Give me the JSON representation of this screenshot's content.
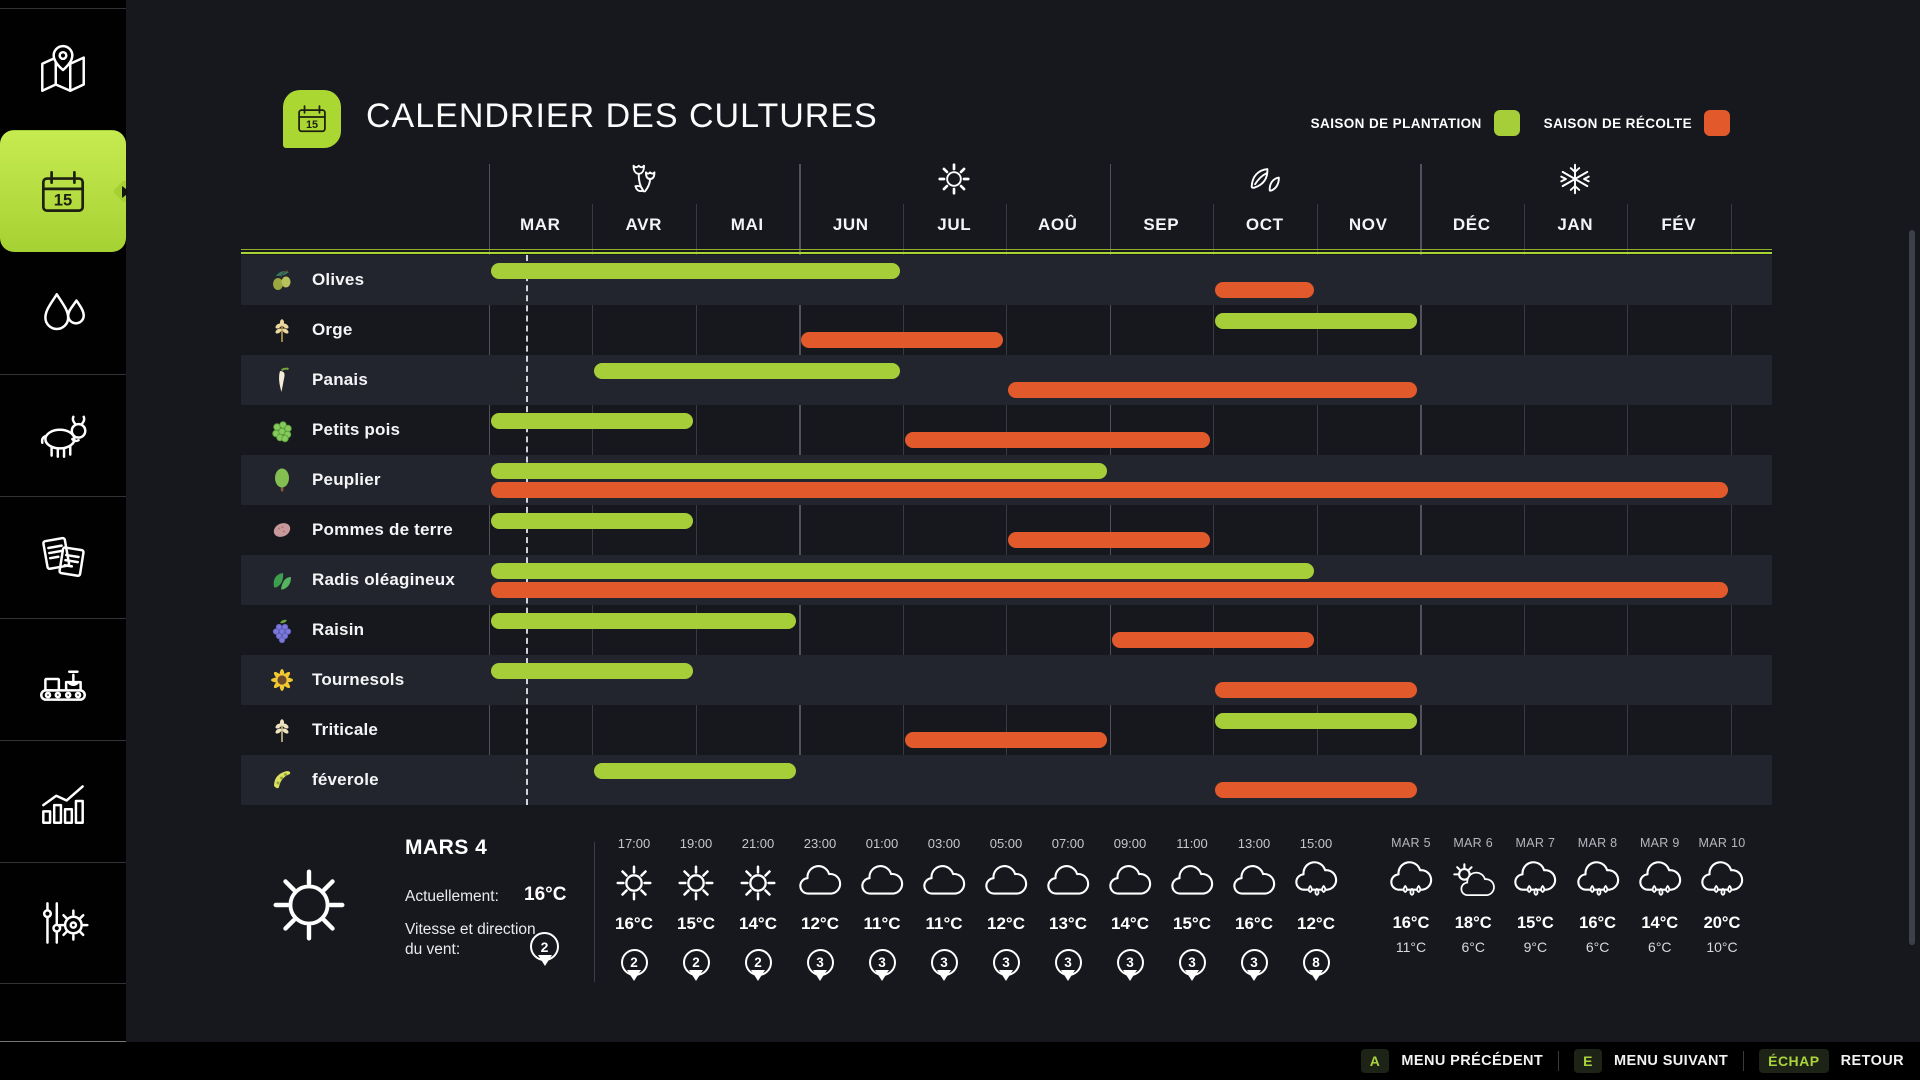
{
  "app": {
    "title": "CALENDRIER DES CULTURES"
  },
  "legend": {
    "planting_label": "SAISON DE PLANTATION",
    "harvest_label": "SAISON DE RÉCOLTE",
    "planting_color": "#a6ce39",
    "harvest_color": "#e2592b"
  },
  "sidebar": {
    "items": [
      {
        "id": "map",
        "icon": "map-icon",
        "active": false
      },
      {
        "id": "calendar",
        "icon": "calendar-icon",
        "active": true
      },
      {
        "id": "water",
        "icon": "water-drops-icon",
        "active": false
      },
      {
        "id": "animals",
        "icon": "cow-icon",
        "active": false
      },
      {
        "id": "contracts",
        "icon": "contracts-icon",
        "active": false
      },
      {
        "id": "production",
        "icon": "production-icon",
        "active": false
      },
      {
        "id": "statistics",
        "icon": "statistics-icon",
        "active": false
      },
      {
        "id": "settings",
        "icon": "settings-sliders-icon",
        "active": false
      }
    ]
  },
  "chart_data": {
    "type": "gantt-calendar",
    "months": [
      "MAR",
      "AVR",
      "MAI",
      "JUN",
      "JUL",
      "AOÛ",
      "SEP",
      "OCT",
      "NOV",
      "DÉC",
      "JAN",
      "FÉV"
    ],
    "seasons": [
      {
        "icon": "spring-flowers-icon",
        "center_month": 1.5
      },
      {
        "icon": "summer-sun-icon",
        "center_month": 4.5
      },
      {
        "icon": "autumn-leaves-icon",
        "center_month": 7.5
      },
      {
        "icon": "winter-snowflake-icon",
        "center_month": 10.5
      }
    ],
    "planting_color": "#a6ce39",
    "harvest_color": "#e2592b",
    "current_day_marker": {
      "label": "MARS 4",
      "month_index": 0,
      "fraction": 0.36
    },
    "rows": [
      {
        "crop": "Olives",
        "icon": "olives-icon",
        "planting": [
          [
            0,
            4
          ]
        ],
        "harvest": [
          [
            7,
            8
          ]
        ]
      },
      {
        "crop": "Orge",
        "icon": "barley-icon",
        "planting": [
          [
            7,
            9
          ]
        ],
        "harvest": [
          [
            3,
            5
          ]
        ]
      },
      {
        "crop": "Panais",
        "icon": "parsnip-icon",
        "planting": [
          [
            1,
            4
          ]
        ],
        "harvest": [
          [
            5,
            9
          ]
        ]
      },
      {
        "crop": "Petits pois",
        "icon": "peas-icon",
        "planting": [
          [
            0,
            2
          ]
        ],
        "harvest": [
          [
            4,
            7
          ]
        ]
      },
      {
        "crop": "Peuplier",
        "icon": "poplar-icon",
        "planting": [
          [
            0,
            6
          ]
        ],
        "harvest": [
          [
            0,
            12
          ]
        ]
      },
      {
        "crop": "Pommes de terre",
        "icon": "potato-icon",
        "planting": [
          [
            0,
            2
          ]
        ],
        "harvest": [
          [
            5,
            7
          ]
        ]
      },
      {
        "crop": "Radis oléagineux",
        "icon": "oilseed-radish-icon",
        "planting": [
          [
            0,
            8
          ]
        ],
        "harvest": [
          [
            0,
            12
          ]
        ]
      },
      {
        "crop": "Raisin",
        "icon": "grapes-icon",
        "planting": [
          [
            0,
            3
          ]
        ],
        "harvest": [
          [
            6,
            8
          ]
        ]
      },
      {
        "crop": "Tournesols",
        "icon": "sunflower-icon",
        "planting": [
          [
            0,
            2
          ]
        ],
        "harvest": [
          [
            7,
            9
          ]
        ]
      },
      {
        "crop": "Triticale",
        "icon": "triticale-icon",
        "planting": [
          [
            7,
            9
          ]
        ],
        "harvest": [
          [
            4,
            6
          ]
        ]
      },
      {
        "crop": "féverole",
        "icon": "field-bean-icon",
        "planting": [
          [
            1,
            3
          ]
        ],
        "harvest": [
          [
            7,
            9
          ]
        ]
      }
    ]
  },
  "weather": {
    "current": {
      "date": "MARS 4",
      "icon": "sun",
      "now_label": "Actuellement:",
      "temperature": "16°C",
      "wind_label": "Vitesse et direction du vent:",
      "wind": "2"
    },
    "hourly": [
      {
        "time": "17:00",
        "icon": "sun",
        "temp": "16°C",
        "wind": "2"
      },
      {
        "time": "19:00",
        "icon": "sun",
        "temp": "15°C",
        "wind": "2"
      },
      {
        "time": "21:00",
        "icon": "sun",
        "temp": "14°C",
        "wind": "2"
      },
      {
        "time": "23:00",
        "icon": "cloud",
        "temp": "12°C",
        "wind": "3"
      },
      {
        "time": "01:00",
        "icon": "cloud",
        "temp": "11°C",
        "wind": "3"
      },
      {
        "time": "03:00",
        "icon": "cloud",
        "temp": "11°C",
        "wind": "3"
      },
      {
        "time": "05:00",
        "icon": "cloud",
        "temp": "12°C",
        "wind": "3"
      },
      {
        "time": "07:00",
        "icon": "cloud",
        "temp": "13°C",
        "wind": "3"
      },
      {
        "time": "09:00",
        "icon": "cloud",
        "temp": "14°C",
        "wind": "3"
      },
      {
        "time": "11:00",
        "icon": "cloud",
        "temp": "15°C",
        "wind": "3"
      },
      {
        "time": "13:00",
        "icon": "cloud",
        "temp": "16°C",
        "wind": "3"
      },
      {
        "time": "15:00",
        "icon": "rain",
        "temp": "12°C",
        "wind": "8"
      }
    ],
    "daily": [
      {
        "date": "MAR 5",
        "icon": "rain",
        "high": "16°C",
        "low": "11°C"
      },
      {
        "date": "MAR 6",
        "icon": "partly",
        "high": "18°C",
        "low": "6°C"
      },
      {
        "date": "MAR 7",
        "icon": "rain",
        "high": "15°C",
        "low": "9°C"
      },
      {
        "date": "MAR 8",
        "icon": "rain",
        "high": "16°C",
        "low": "6°C"
      },
      {
        "date": "MAR 9",
        "icon": "rain",
        "high": "14°C",
        "low": "6°C"
      },
      {
        "date": "MAR 10",
        "icon": "rain",
        "high": "20°C",
        "low": "10°C"
      }
    ]
  },
  "footer": {
    "hints": [
      {
        "key": "A",
        "label": "MENU PRÉCÉDENT"
      },
      {
        "key": "E",
        "label": "MENU SUIVANT"
      },
      {
        "key": "ÉCHAP",
        "label": "RETOUR"
      }
    ]
  }
}
